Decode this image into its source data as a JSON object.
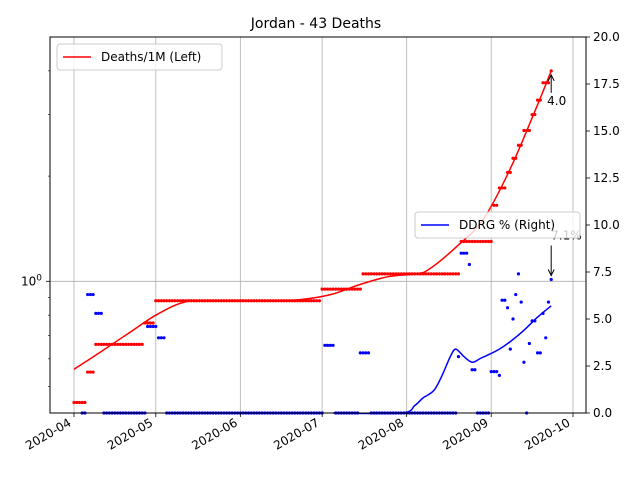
{
  "chart_data": {
    "type": "line",
    "title": "Jordan - 43 Deaths",
    "xlabel": "",
    "ylabel_left": "",
    "ylabel_right": "",
    "x_ticks": [
      "2020-04",
      "2020-05",
      "2020-06",
      "2020-07",
      "2020-08",
      "2020-09",
      "2020-10"
    ],
    "x_range": [
      "2020-04-01",
      "2020-10-01"
    ],
    "left_axis": {
      "scale": "log",
      "ylim": [
        0.42,
        5.0
      ],
      "tick_labels": [
        "10^0"
      ]
    },
    "right_axis": {
      "scale": "linear",
      "ylim": [
        0,
        20
      ],
      "ticks": [
        0.0,
        2.5,
        5.0,
        7.5,
        10.0,
        12.5,
        15.0,
        17.5,
        20.0
      ]
    },
    "grid": true,
    "annotations": [
      {
        "text": "4.0",
        "series": "Deaths/1M",
        "x_day": 175,
        "y": 4.0
      },
      {
        "text": "7.1%",
        "series": "DDRG %",
        "x_day": 175,
        "y": 7.1
      }
    ],
    "series": [
      {
        "name": "Deaths/1M (Left)",
        "legend": "top-left",
        "axis": "left",
        "color": "#ff0000",
        "line_color": "#ff0000",
        "dot_segments": [
          {
            "from": 0,
            "to": 4,
            "value": 0.45
          },
          {
            "from": 5,
            "to": 7,
            "value": 0.55
          },
          {
            "from": 8,
            "to": 25,
            "value": 0.66
          },
          {
            "from": 26,
            "to": 29,
            "value": 0.76
          },
          {
            "from": 30,
            "to": 90,
            "value": 0.88
          },
          {
            "from": 91,
            "to": 105,
            "value": 0.95
          },
          {
            "from": 106,
            "to": 141,
            "value": 1.05
          },
          {
            "from": 142,
            "to": 153,
            "value": 1.3
          },
          {
            "from": 154,
            "to": 155,
            "value": 1.65
          },
          {
            "from": 156,
            "to": 158,
            "value": 1.85
          },
          {
            "from": 159,
            "to": 160,
            "value": 2.05
          },
          {
            "from": 161,
            "to": 162,
            "value": 2.25
          },
          {
            "from": 163,
            "to": 164,
            "value": 2.45
          },
          {
            "from": 165,
            "to": 167,
            "value": 2.7
          },
          {
            "from": 168,
            "to": 169,
            "value": 3.0
          },
          {
            "from": 170,
            "to": 171,
            "value": 3.3
          },
          {
            "from": 172,
            "to": 174,
            "value": 3.7
          },
          {
            "from": 175,
            "to": 175,
            "value": 4.0
          }
        ],
        "trend": [
          {
            "day": 0,
            "value": 0.56
          },
          {
            "day": 10,
            "value": 0.63
          },
          {
            "day": 20,
            "value": 0.71
          },
          {
            "day": 30,
            "value": 0.8
          },
          {
            "day": 40,
            "value": 0.87
          },
          {
            "day": 50,
            "value": 0.88
          },
          {
            "day": 75,
            "value": 0.88
          },
          {
            "day": 85,
            "value": 0.89
          },
          {
            "day": 95,
            "value": 0.92
          },
          {
            "day": 105,
            "value": 0.98
          },
          {
            "day": 115,
            "value": 1.03
          },
          {
            "day": 125,
            "value": 1.05
          },
          {
            "day": 130,
            "value": 1.08
          },
          {
            "day": 140,
            "value": 1.25
          },
          {
            "day": 150,
            "value": 1.5
          },
          {
            "day": 160,
            "value": 2.1
          },
          {
            "day": 170,
            "value": 3.2
          },
          {
            "day": 175,
            "value": 4.0
          }
        ]
      },
      {
        "name": "DDRG % (Right)",
        "legend": "center-right",
        "axis": "right",
        "color": "#0000ff",
        "line_color": "#0000ff",
        "dot_segments": [
          {
            "from": 3,
            "to": 4,
            "value": 0.0
          },
          {
            "from": 5,
            "to": 7,
            "value": 6.3
          },
          {
            "from": 8,
            "to": 10,
            "value": 5.3
          },
          {
            "from": 11,
            "to": 26,
            "value": 0.0
          },
          {
            "from": 27,
            "to": 30,
            "value": 4.6
          },
          {
            "from": 31,
            "to": 33,
            "value": 4.0
          },
          {
            "from": 34,
            "to": 91,
            "value": 0.0
          },
          {
            "from": 92,
            "to": 95,
            "value": 3.6
          },
          {
            "from": 96,
            "to": 104,
            "value": 0.0
          },
          {
            "from": 105,
            "to": 108,
            "value": 3.2
          },
          {
            "from": 109,
            "to": 140,
            "value": 0.0
          },
          {
            "from": 141,
            "to": 141,
            "value": 3.0
          },
          {
            "from": 142,
            "to": 144,
            "value": 8.5
          },
          {
            "from": 145,
            "to": 145,
            "value": 7.9
          },
          {
            "from": 146,
            "to": 147,
            "value": 2.3
          },
          {
            "from": 148,
            "to": 152,
            "value": 0.0
          },
          {
            "from": 153,
            "to": 155,
            "value": 2.2
          },
          {
            "from": 156,
            "to": 156,
            "value": 2.0
          },
          {
            "from": 157,
            "to": 158,
            "value": 6.0
          },
          {
            "from": 159,
            "to": 159,
            "value": 5.6
          },
          {
            "from": 160,
            "to": 160,
            "value": 3.4
          },
          {
            "from": 161,
            "to": 161,
            "value": 5.0
          },
          {
            "from": 162,
            "to": 162,
            "value": 6.3
          },
          {
            "from": 163,
            "to": 163,
            "value": 7.4
          },
          {
            "from": 164,
            "to": 164,
            "value": 5.9
          },
          {
            "from": 165,
            "to": 165,
            "value": 2.7
          },
          {
            "from": 166,
            "to": 166,
            "value": 0.0
          },
          {
            "from": 167,
            "to": 167,
            "value": 3.7
          },
          {
            "from": 168,
            "to": 169,
            "value": 4.9
          },
          {
            "from": 170,
            "to": 171,
            "value": 3.2
          },
          {
            "from": 172,
            "to": 172,
            "value": 5.3
          },
          {
            "from": 173,
            "to": 173,
            "value": 4.0
          },
          {
            "from": 174,
            "to": 174,
            "value": 5.9
          },
          {
            "from": 175,
            "to": 175,
            "value": 7.1
          }
        ],
        "trend": [
          {
            "day": 95,
            "value": 0.0
          },
          {
            "day": 120,
            "value": 0.0
          },
          {
            "day": 125,
            "value": 0.4
          },
          {
            "day": 128,
            "value": 0.8
          },
          {
            "day": 132,
            "value": 1.2
          },
          {
            "day": 135,
            "value": 2.0
          },
          {
            "day": 138,
            "value": 3.0
          },
          {
            "day": 140,
            "value": 3.4
          },
          {
            "day": 143,
            "value": 3.0
          },
          {
            "day": 146,
            "value": 2.7
          },
          {
            "day": 149,
            "value": 2.9
          },
          {
            "day": 152,
            "value": 3.1
          },
          {
            "day": 156,
            "value": 3.4
          },
          {
            "day": 160,
            "value": 3.8
          },
          {
            "day": 165,
            "value": 4.4
          },
          {
            "day": 170,
            "value": 5.1
          },
          {
            "day": 175,
            "value": 5.7
          }
        ]
      }
    ]
  }
}
